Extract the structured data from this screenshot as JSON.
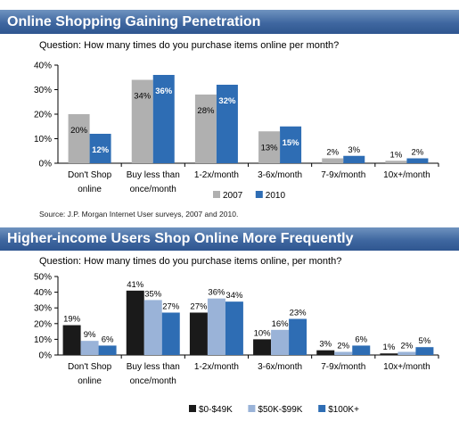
{
  "colors": {
    "banner": "#3f67a0",
    "series_gray": "#b0b0b0",
    "series_blue": "#2e6db4",
    "series_black": "#1a1a1a",
    "series_light_blue": "#9ab3d8"
  },
  "header1": {
    "title": "Online Shopping Gaining Penetration",
    "question": "Question: How many times do you purchase items online per month?"
  },
  "header2": {
    "title": "Higher-income Users Shop Online More Frequently",
    "question": "Question: How many times do you purchase items online, per month?"
  },
  "source": "Source: J.P. Morgan Internet User surveys, 2007 and 2010.",
  "chart_data": [
    {
      "type": "bar",
      "categories": [
        "Don't Shop online",
        "Buy less than once/month",
        "1-2x/month",
        "3-6x/month",
        "7-9x/month",
        "10x+/month"
      ],
      "category_lines": [
        [
          "Don't Shop",
          "online"
        ],
        [
          "Buy less than",
          "once/month"
        ],
        [
          "1-2x/month"
        ],
        [
          "3-6x/month"
        ],
        [
          "7-9x/month"
        ],
        [
          "10x+/month"
        ]
      ],
      "y_ticks": [
        "0%",
        "10%",
        "20%",
        "30%",
        "40%"
      ],
      "ylim": [
        0,
        40
      ],
      "legend_position": "bottom-right",
      "series": [
        {
          "name": "2007",
          "color": "#b0b0b0",
          "values": [
            20,
            34,
            28,
            13,
            2,
            1
          ],
          "labels": [
            "20%",
            "34%",
            "28%",
            "13%",
            "2%",
            "1%"
          ]
        },
        {
          "name": "2010",
          "color": "#2e6db4",
          "values": [
            12,
            36,
            32,
            15,
            3,
            2
          ],
          "labels": [
            "12%",
            "36%",
            "32%",
            "15%",
            "3%",
            "2%"
          ]
        }
      ]
    },
    {
      "type": "bar",
      "categories": [
        "Don't Shop online",
        "Buy less than once/month",
        "1-2x/month",
        "3-6x/month",
        "7-9x/month",
        "10x+/month"
      ],
      "category_lines": [
        [
          "Don't Shop",
          "online"
        ],
        [
          "Buy less than",
          "once/month"
        ],
        [
          "1-2x/month"
        ],
        [
          "3-6x/month"
        ],
        [
          "7-9x/month"
        ],
        [
          "10x+/month"
        ]
      ],
      "y_ticks": [
        "0%",
        "10%",
        "20%",
        "30%",
        "40%",
        "50%"
      ],
      "ylim": [
        0,
        50
      ],
      "legend_position": "bottom-right",
      "series": [
        {
          "name": "$0-$49K",
          "color": "#1a1a1a",
          "values": [
            19,
            41,
            27,
            10,
            3,
            1
          ],
          "labels": [
            "19%",
            "41%",
            "27%",
            "10%",
            "3%",
            "1%"
          ]
        },
        {
          "name": "$50K-$99K",
          "color": "#9ab3d8",
          "values": [
            9,
            35,
            36,
            16,
            2,
            2
          ],
          "labels": [
            "9%",
            "35%",
            "36%",
            "16%",
            "2%",
            "2%"
          ]
        },
        {
          "name": "$100K+",
          "color": "#2e6db4",
          "values": [
            6,
            27,
            34,
            23,
            6,
            5
          ],
          "labels": [
            "6%",
            "27%",
            "34%",
            "23%",
            "6%",
            "5%"
          ]
        }
      ]
    }
  ]
}
